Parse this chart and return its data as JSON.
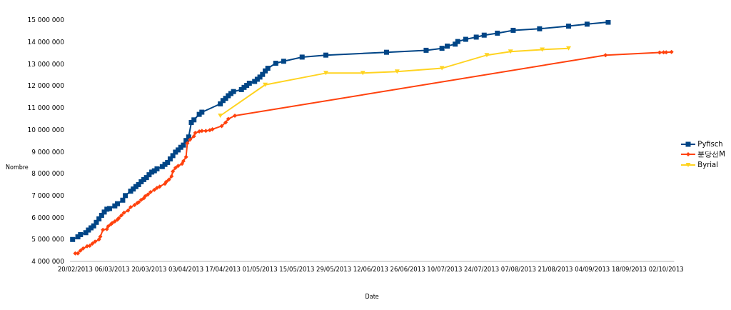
{
  "chart_data": {
    "type": "line",
    "xlabel": "Date",
    "ylabel": "Nombre",
    "legend": "right",
    "grid": false,
    "line_style": "solid",
    "xlim": [
      "2013-02-18",
      "2013-10-05"
    ],
    "xticks": [
      {
        "value": "2013-02-20",
        "label": "20/02/2013"
      },
      {
        "value": "2013-03-06",
        "label": "06/03/2013"
      },
      {
        "value": "2013-03-20",
        "label": "20/03/2013"
      },
      {
        "value": "2013-04-03",
        "label": "03/04/2013"
      },
      {
        "value": "2013-04-17",
        "label": "17/04/2013"
      },
      {
        "value": "2013-05-01",
        "label": "01/05/2013"
      },
      {
        "value": "2013-05-15",
        "label": "15/05/2013"
      },
      {
        "value": "2013-05-29",
        "label": "29/05/2013"
      },
      {
        "value": "2013-06-12",
        "label": "12/06/2013"
      },
      {
        "value": "2013-06-26",
        "label": "26/06/2013"
      },
      {
        "value": "2013-07-10",
        "label": "10/07/2013"
      },
      {
        "value": "2013-07-24",
        "label": "24/07/2013"
      },
      {
        "value": "2013-08-07",
        "label": "07/08/2013"
      },
      {
        "value": "2013-08-21",
        "label": "21/08/2013"
      },
      {
        "value": "2013-09-04",
        "label": "04/09/2013"
      },
      {
        "value": "2013-09-18",
        "label": "18/09/2013"
      },
      {
        "value": "2013-10-02",
        "label": "02/10/2013"
      }
    ],
    "ylim": [
      4000000,
      15000000
    ],
    "yticks": [
      {
        "value": 4000000,
        "label": "4 000 000"
      },
      {
        "value": 5000000,
        "label": "5 000 000"
      },
      {
        "value": 6000000,
        "label": "6 000 000"
      },
      {
        "value": 7000000,
        "label": "7 000 000"
      },
      {
        "value": 8000000,
        "label": "8 000 000"
      },
      {
        "value": 9000000,
        "label": "9 000 000"
      },
      {
        "value": 10000000,
        "label": "10 000 000"
      },
      {
        "value": 11000000,
        "label": "11 000 000"
      },
      {
        "value": 12000000,
        "label": "12 000 000"
      },
      {
        "value": 13000000,
        "label": "13 000 000"
      },
      {
        "value": 14000000,
        "label": "14 000 000"
      },
      {
        "value": 15000000,
        "label": "15 000 000"
      }
    ],
    "series": [
      {
        "name": "Pyfisch",
        "color": "#004586",
        "marker": "square",
        "x": [
          "2013-02-19",
          "2013-02-21",
          "2013-02-22",
          "2013-02-24",
          "2013-02-25",
          "2013-02-26",
          "2013-02-27",
          "2013-02-28",
          "2013-03-01",
          "2013-03-02",
          "2013-03-03",
          "2013-03-04",
          "2013-03-05",
          "2013-03-07",
          "2013-03-08",
          "2013-03-10",
          "2013-03-11",
          "2013-03-13",
          "2013-03-14",
          "2013-03-15",
          "2013-03-16",
          "2013-03-17",
          "2013-03-18",
          "2013-03-19",
          "2013-03-20",
          "2013-03-21",
          "2013-03-22",
          "2013-03-23",
          "2013-03-25",
          "2013-03-26",
          "2013-03-27",
          "2013-03-28",
          "2013-03-29",
          "2013-03-30",
          "2013-03-31",
          "2013-04-01",
          "2013-04-02",
          "2013-04-03",
          "2013-04-04",
          "2013-04-05",
          "2013-04-06",
          "2013-04-08",
          "2013-04-09",
          "2013-04-16",
          "2013-04-17",
          "2013-04-18",
          "2013-04-19",
          "2013-04-20",
          "2013-04-21",
          "2013-04-24",
          "2013-04-25",
          "2013-04-26",
          "2013-04-27",
          "2013-04-29",
          "2013-04-30",
          "2013-05-01",
          "2013-05-02",
          "2013-05-03",
          "2013-05-04",
          "2013-05-07",
          "2013-05-10",
          "2013-05-17",
          "2013-05-26",
          "2013-06-18",
          "2013-07-03",
          "2013-07-09",
          "2013-07-11",
          "2013-07-14",
          "2013-07-15",
          "2013-07-18",
          "2013-07-22",
          "2013-07-25",
          "2013-07-30",
          "2013-08-05",
          "2013-08-15",
          "2013-08-26",
          "2013-09-02",
          "2013-09-10"
        ],
        "values": [
          5000000,
          5120000,
          5220000,
          5310000,
          5430000,
          5530000,
          5620000,
          5780000,
          5940000,
          6100000,
          6250000,
          6380000,
          6410000,
          6530000,
          6630000,
          6790000,
          7000000,
          7200000,
          7300000,
          7410000,
          7500000,
          7630000,
          7730000,
          7820000,
          7950000,
          8070000,
          8130000,
          8220000,
          8320000,
          8420000,
          8510000,
          8670000,
          8820000,
          8980000,
          9080000,
          9200000,
          9300000,
          9510000,
          9670000,
          10330000,
          10450000,
          10700000,
          10800000,
          11180000,
          11330000,
          11430000,
          11550000,
          11650000,
          11740000,
          11830000,
          11930000,
          12020000,
          12120000,
          12200000,
          12300000,
          12400000,
          12520000,
          12680000,
          12800000,
          13030000,
          13120000,
          13310000,
          13400000,
          13530000,
          13620000,
          13710000,
          13810000,
          13900000,
          14020000,
          14120000,
          14220000,
          14310000,
          14400000,
          14530000,
          14600000,
          14720000,
          14810000,
          14900000
        ]
      },
      {
        "name": "분당선M",
        "color": "#ff420e",
        "marker": "diamond",
        "x": [
          "2013-02-20",
          "2013-02-21",
          "2013-02-22",
          "2013-02-23",
          "2013-02-24T12:00",
          "2013-02-25T12:00",
          "2013-02-26T12:00",
          "2013-02-27T12:00",
          "2013-03-01",
          "2013-03-01T12:00",
          "2013-03-02T12:00",
          "2013-03-04",
          "2013-03-04T12:00",
          "2013-03-05T12:00",
          "2013-03-06",
          "2013-03-07",
          "2013-03-08",
          "2013-03-08T12:00",
          "2013-03-09T12:00",
          "2013-03-10T12:00",
          "2013-03-12",
          "2013-03-13",
          "2013-03-14T12:00",
          "2013-03-15T12:00",
          "2013-03-16",
          "2013-03-17",
          "2013-03-18",
          "2013-03-18T12:00",
          "2013-03-19T12:00",
          "2013-03-20T12:00",
          "2013-03-22",
          "2013-03-23",
          "2013-03-24",
          "2013-03-26",
          "2013-03-26T12:00",
          "2013-03-27T12:00",
          "2013-03-28T12:00",
          "2013-03-29",
          "2013-03-30",
          "2013-03-31",
          "2013-04-01T12:00",
          "2013-04-02",
          "2013-04-03",
          "2013-04-03T12:00",
          "2013-04-04T12:00",
          "2013-04-06",
          "2013-04-06T12:00",
          "2013-04-08",
          "2013-04-09",
          "2013-04-10T12:00",
          "2013-04-12",
          "2013-04-13",
          "2013-04-16T12:00",
          "2013-04-18",
          "2013-04-19",
          "2013-04-21T12:00",
          "2013-09-09",
          "2013-09-29T12:00",
          "2013-10-01",
          "2013-10-02",
          "2013-10-04"
        ],
        "values": [
          4370000,
          4370000,
          4500000,
          4590000,
          4690000,
          4720000,
          4810000,
          4900000,
          5000000,
          5130000,
          5440000,
          5470000,
          5600000,
          5690000,
          5750000,
          5820000,
          5900000,
          5970000,
          6100000,
          6220000,
          6320000,
          6470000,
          6570000,
          6660000,
          6690000,
          6810000,
          6880000,
          6970000,
          7040000,
          7160000,
          7260000,
          7350000,
          7410000,
          7540000,
          7630000,
          7730000,
          7880000,
          8100000,
          8260000,
          8350000,
          8450000,
          8570000,
          8760000,
          9390000,
          9550000,
          9700000,
          9860000,
          9920000,
          9950000,
          9950000,
          9980000,
          10020000,
          10170000,
          10330000,
          10490000,
          10640000,
          13400000,
          13520000,
          13530000,
          13530000,
          13540000
        ]
      },
      {
        "name": "Byrial",
        "color": "#ffd320",
        "marker": "triangle",
        "x": [
          "2013-04-16",
          "2013-05-03",
          "2013-05-26",
          "2013-06-09",
          "2013-06-22",
          "2013-07-09",
          "2013-07-26",
          "2013-08-04",
          "2013-08-16",
          "2013-08-26"
        ],
        "values": [
          10640000,
          12050000,
          12580000,
          12580000,
          12650000,
          12800000,
          13400000,
          13560000,
          13650000,
          13710000
        ]
      }
    ]
  }
}
